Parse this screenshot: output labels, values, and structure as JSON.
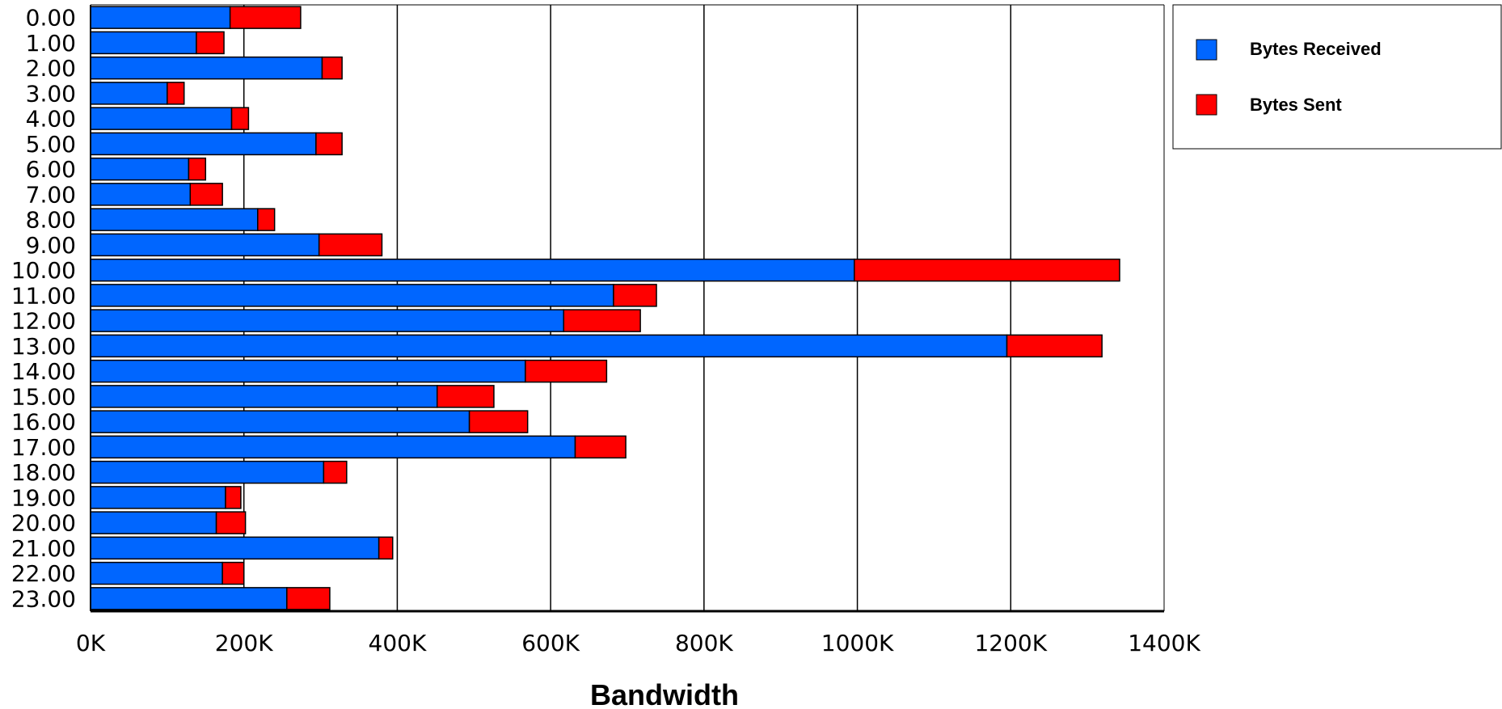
{
  "chart_data": {
    "type": "bar",
    "orientation": "horizontal",
    "stacked": true,
    "categories": [
      "0.00",
      "1.00",
      "2.00",
      "3.00",
      "4.00",
      "5.00",
      "6.00",
      "7.00",
      "8.00",
      "9.00",
      "10.00",
      "11.00",
      "12.00",
      "13.00",
      "14.00",
      "15.00",
      "16.00",
      "17.00",
      "18.00",
      "19.00",
      "20.00",
      "21.00",
      "22.00",
      "23.00"
    ],
    "series": [
      {
        "name": "Bytes Received",
        "color": "#0066ff",
        "values": [
          182,
          138,
          302,
          100,
          184,
          294,
          128,
          130,
          218,
          298,
          996,
          682,
          617,
          1195,
          567,
          452,
          494,
          632,
          304,
          176,
          164,
          376,
          172,
          256
        ]
      },
      {
        "name": "Bytes Sent",
        "color": "#ff0000",
        "values": [
          92,
          36,
          26,
          22,
          22,
          34,
          22,
          42,
          22,
          82,
          346,
          56,
          100,
          124,
          106,
          74,
          76,
          66,
          30,
          20,
          38,
          18,
          28,
          56
        ]
      }
    ],
    "title": "",
    "xlabel": "Bandwidth",
    "ylabel": "",
    "xlim": [
      0,
      1400
    ],
    "x_ticks": [
      "0K",
      "200K",
      "400K",
      "600K",
      "800K",
      "1000K",
      "1200K",
      "1400K"
    ],
    "grid": true,
    "legend_position": "top-right"
  }
}
